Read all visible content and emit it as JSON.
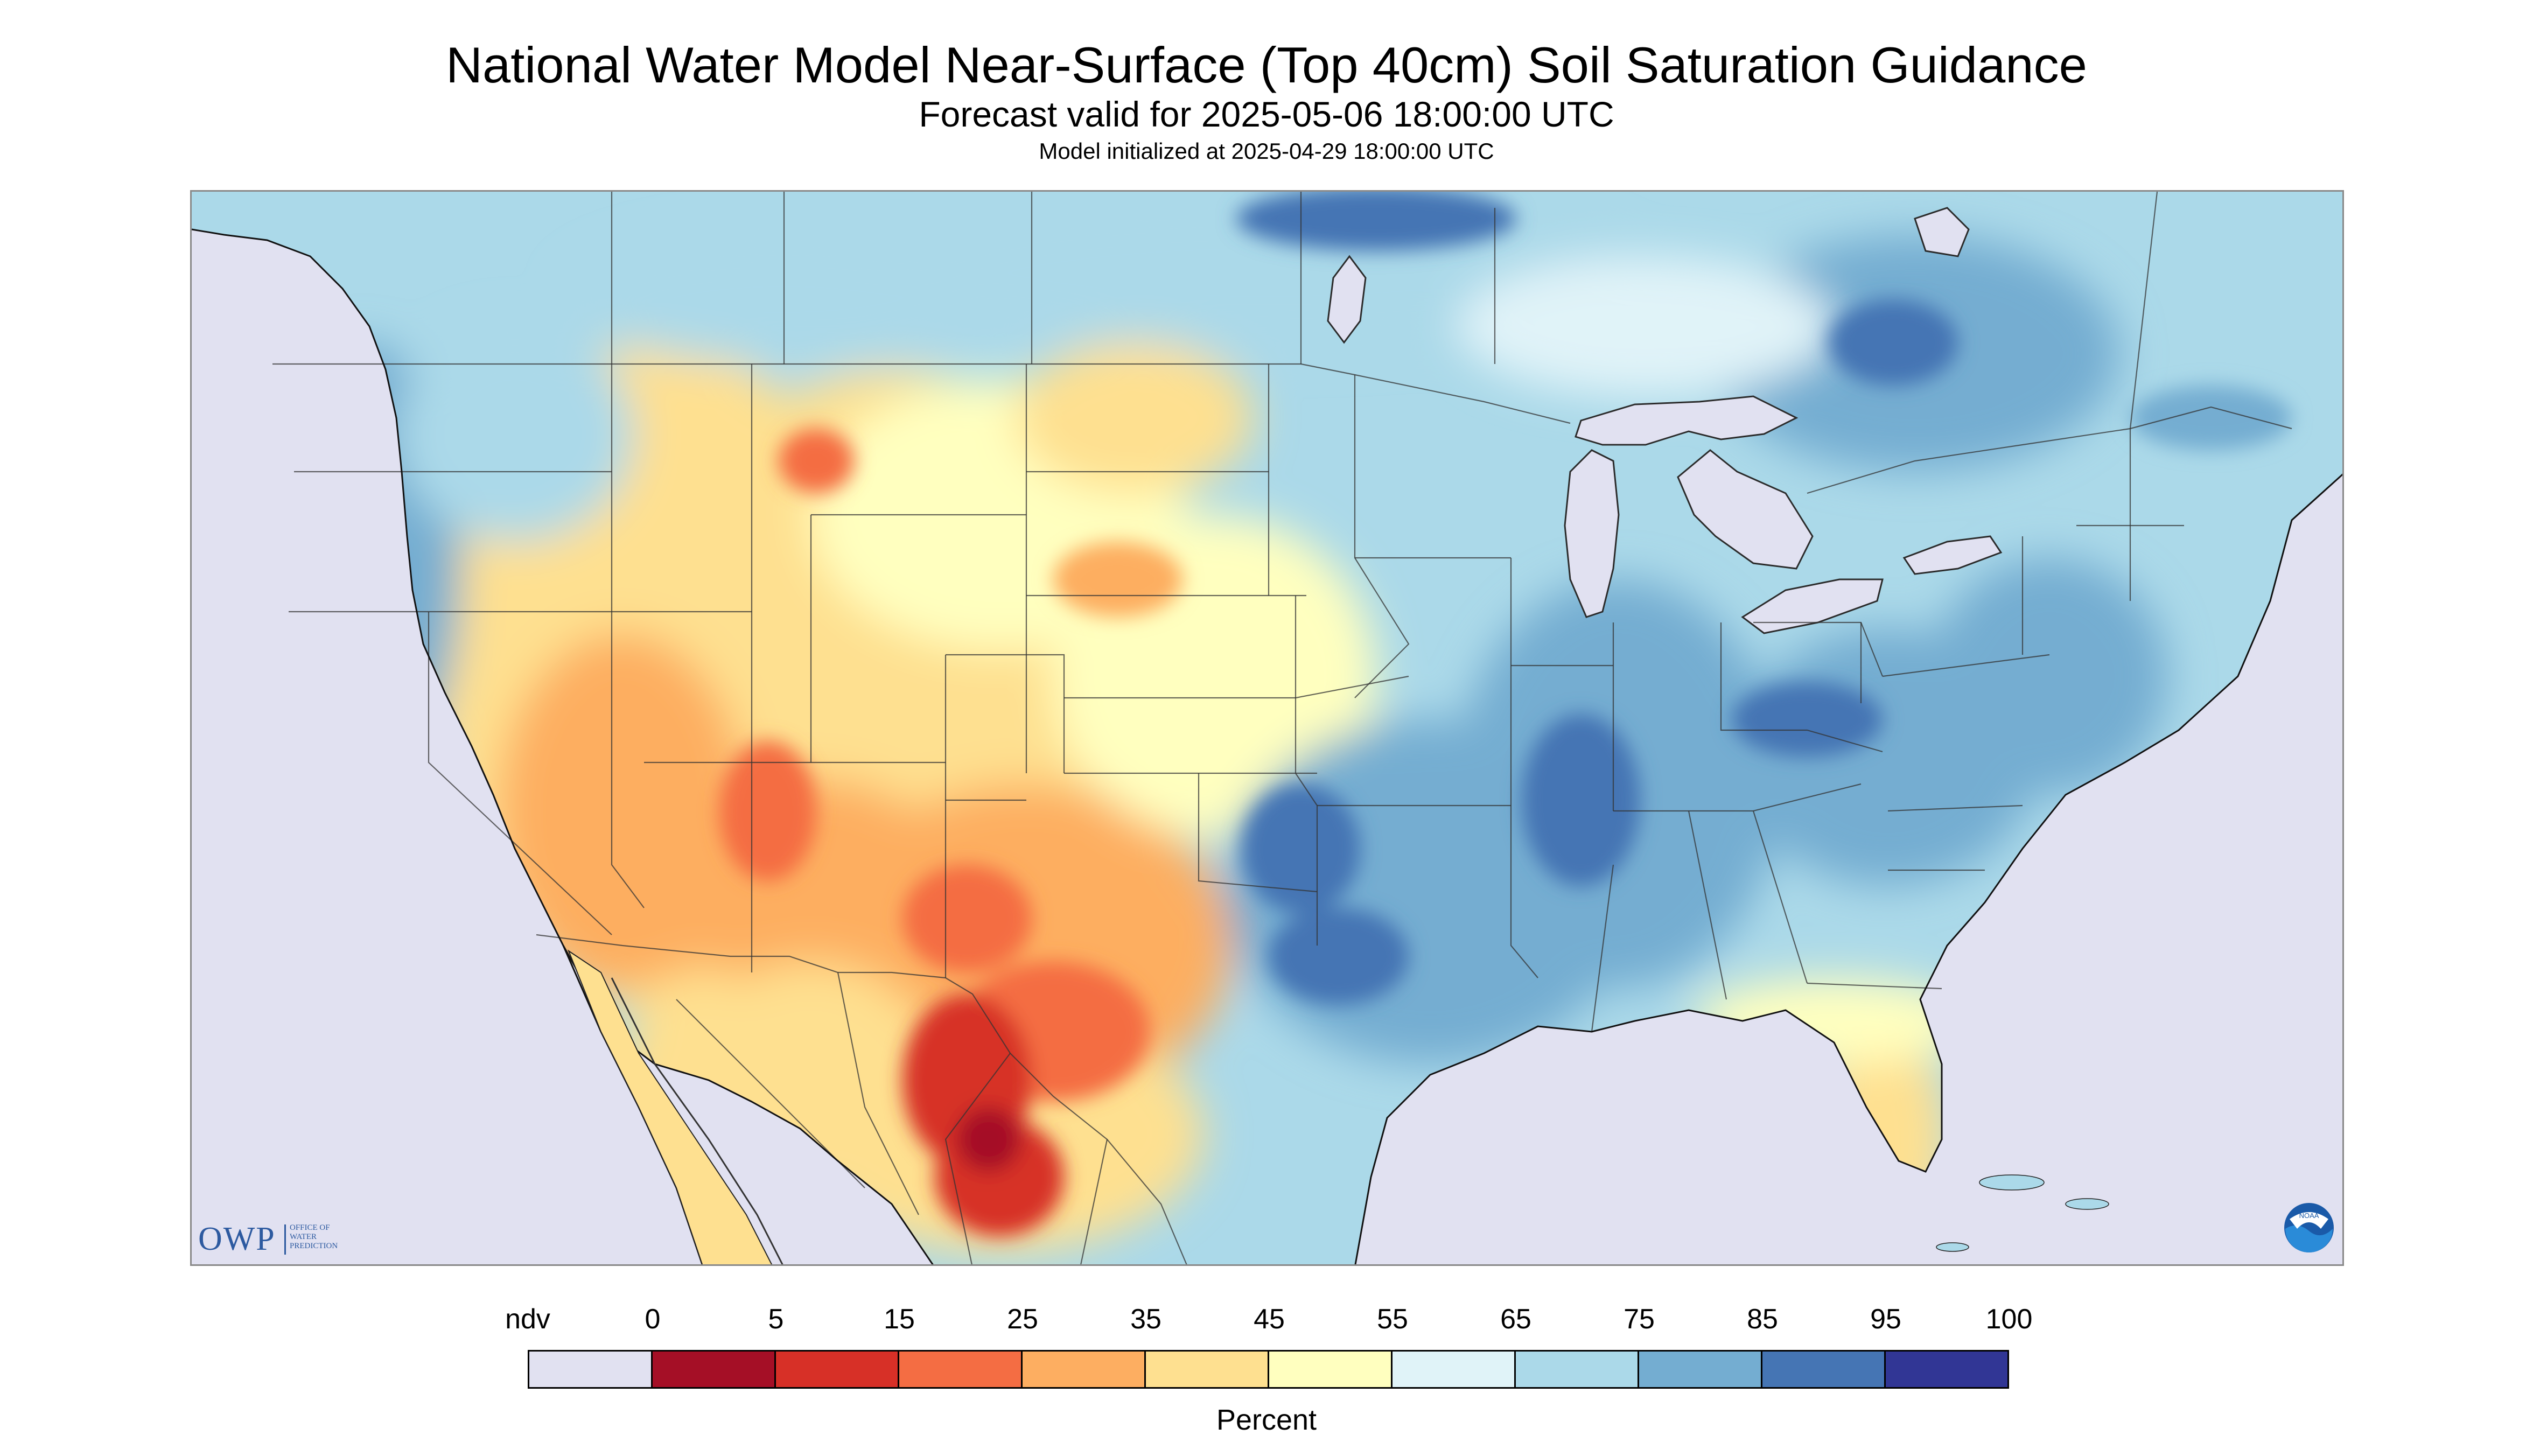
{
  "header": {
    "title": "National Water Model Near-Surface (Top 40cm) Soil Saturation Guidance",
    "subtitle": "Forecast valid for 2025-05-06 18:00:00 UTC",
    "init": "Model initialized at 2025-04-29 18:00:00 UTC"
  },
  "logos": {
    "owp_abbrev": "OWP",
    "owp_full": [
      "OFFICE OF",
      "WATER",
      "PREDICTION"
    ],
    "noaa": "NOAA"
  },
  "legend": {
    "labels": [
      "ndv",
      "0",
      "5",
      "15",
      "25",
      "35",
      "45",
      "55",
      "65",
      "75",
      "85",
      "95",
      "100"
    ],
    "colors": [
      "#e1e1f1",
      "#a50f26",
      "#d73027",
      "#f46d43",
      "#fdae61",
      "#fee090",
      "#ffffbf",
      "#e0f3f8",
      "#abd9e9",
      "#74add1",
      "#4575b4",
      "#313695"
    ],
    "units": "Percent"
  },
  "map_colors": {
    "nodata": "#e1e1f1",
    "water": "#e1e1f1",
    "land_base": "#abd9e9"
  }
}
